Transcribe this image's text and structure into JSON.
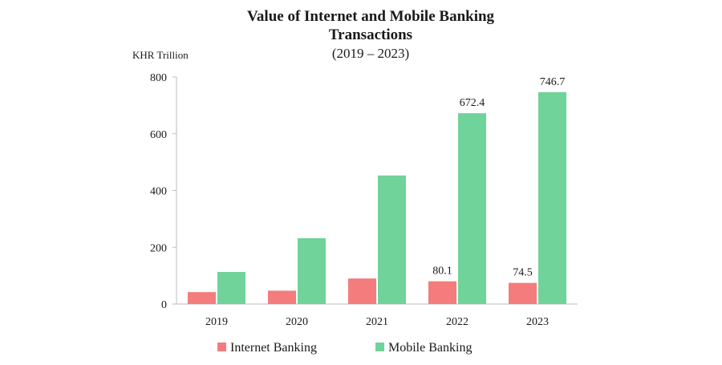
{
  "chart_data": {
    "type": "bar",
    "title_line1": "Value of Internet and Mobile Banking",
    "title_line2": "Transactions",
    "subtitle": "(2019 – 2023)",
    "ylabel": "KHR Trillion",
    "xlabel": "",
    "categories": [
      "2019",
      "2020",
      "2021",
      "2022",
      "2023"
    ],
    "ylim": [
      0,
      800
    ],
    "yticks": [
      0,
      200,
      400,
      600,
      800
    ],
    "grid": false,
    "legend_position": "bottom",
    "series": [
      {
        "name": "Internet Banking",
        "color": "#f47c7c",
        "values": [
          42,
          47,
          90,
          80.1,
          74.5
        ],
        "labels": [
          "",
          "",
          "",
          "80.1",
          "74.5"
        ]
      },
      {
        "name": "Mobile Banking",
        "color": "#6fd39a",
        "values": [
          113,
          232,
          453,
          672.4,
          746.7
        ],
        "labels": [
          "",
          "",
          "",
          "672.4",
          "746.7"
        ]
      }
    ]
  }
}
